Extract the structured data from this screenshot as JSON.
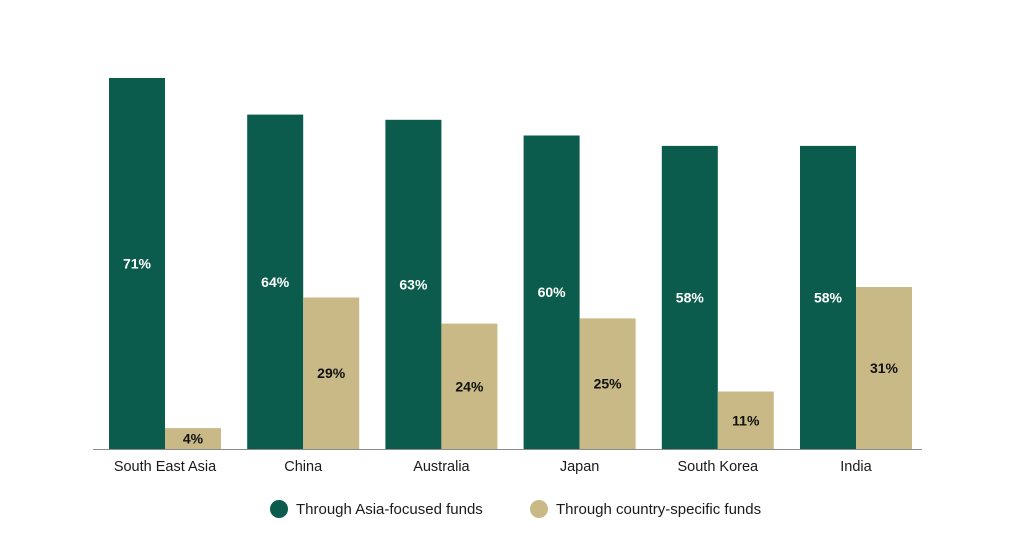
{
  "chart_data": {
    "type": "bar",
    "title": "",
    "xlabel": "",
    "ylabel": "",
    "ylim": [
      0,
      71
    ],
    "grid": false,
    "legend_position": "bottom",
    "value_suffix": "%",
    "categories": [
      "South East Asia",
      "China",
      "Australia",
      "Japan",
      "South Korea",
      "India"
    ],
    "series": [
      {
        "name": "Through Asia-focused funds",
        "color": "#0b5c4c",
        "label_color": "#ffffff",
        "values": [
          71,
          64,
          63,
          60,
          58,
          58
        ],
        "labels": [
          "71%",
          "64%",
          "63%",
          "60%",
          "58%",
          "58%"
        ]
      },
      {
        "name": "Through country-specific funds",
        "color": "#c9b987",
        "label_color": "#111111",
        "values": [
          4,
          29,
          24,
          25,
          11,
          31
        ],
        "labels": [
          "4%",
          "29%",
          "24%",
          "25%",
          "11%",
          "31%"
        ]
      }
    ]
  }
}
